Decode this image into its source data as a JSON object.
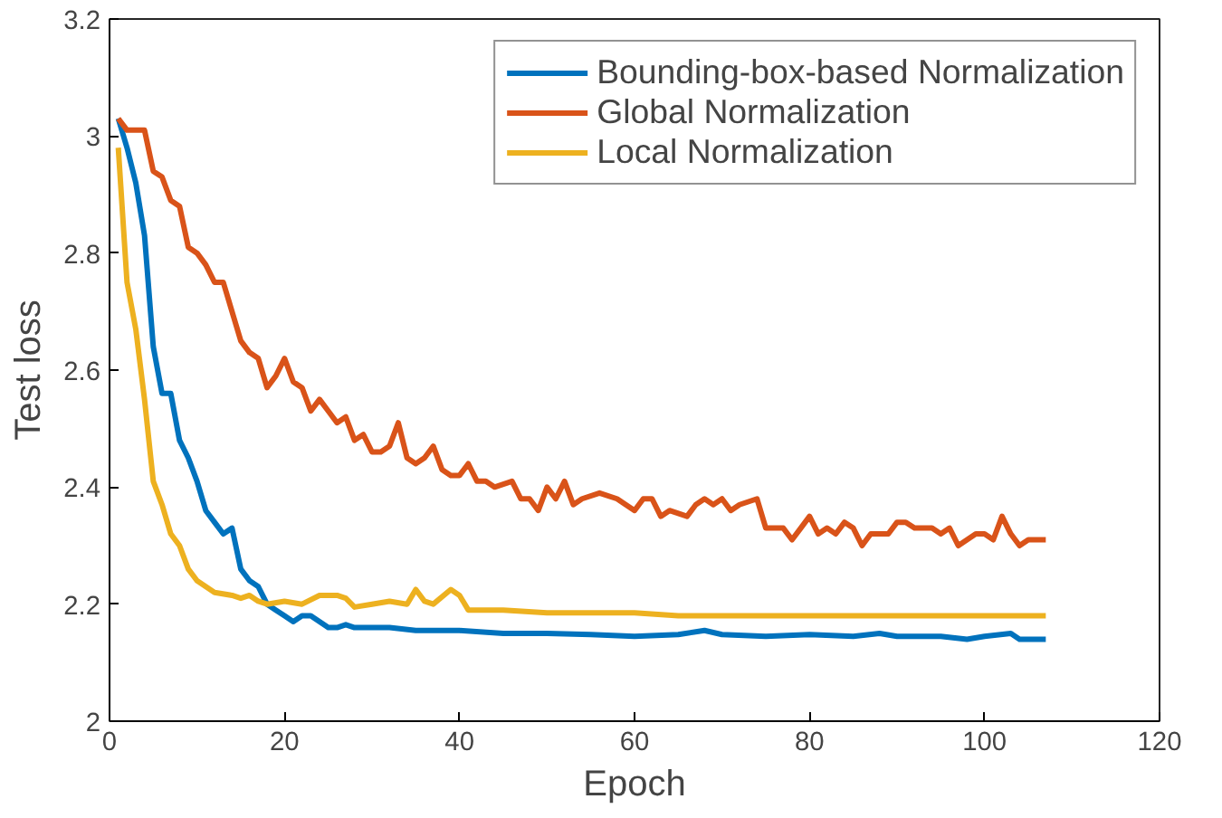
{
  "chart_data": {
    "type": "line",
    "xlabel": "Epoch",
    "ylabel": "Test loss",
    "xlim": [
      0,
      120
    ],
    "ylim": [
      2,
      3.2
    ],
    "xticks": [
      0,
      20,
      40,
      60,
      80,
      100,
      120
    ],
    "yticks": [
      2,
      2.2,
      2.4,
      2.6,
      2.8,
      3,
      3.2
    ],
    "grid": false,
    "legend": "top right",
    "line_style": "solid",
    "marker": "none",
    "series": [
      {
        "name": "Bounding-box-based Normalization",
        "color": "#0072bd",
        "x": [
          1,
          2,
          3,
          4,
          5,
          6,
          7,
          8,
          9,
          10,
          11,
          12,
          13,
          14,
          15,
          16,
          17,
          18,
          19,
          20,
          21,
          22,
          23,
          24,
          25,
          26,
          27,
          28,
          30,
          32,
          35,
          40,
          45,
          50,
          55,
          60,
          65,
          68,
          70,
          75,
          80,
          85,
          88,
          90,
          95,
          98,
          100,
          103,
          104,
          107
        ],
        "values": [
          3.03,
          2.98,
          2.92,
          2.83,
          2.64,
          2.56,
          2.56,
          2.48,
          2.45,
          2.41,
          2.36,
          2.34,
          2.32,
          2.33,
          2.26,
          2.24,
          2.23,
          2.2,
          2.19,
          2.18,
          2.17,
          2.18,
          2.18,
          2.17,
          2.16,
          2.16,
          2.165,
          2.16,
          2.16,
          2.16,
          2.155,
          2.155,
          2.15,
          2.15,
          2.148,
          2.145,
          2.148,
          2.155,
          2.148,
          2.145,
          2.148,
          2.145,
          2.15,
          2.145,
          2.145,
          2.14,
          2.145,
          2.15,
          2.14,
          2.14
        ]
      },
      {
        "name": "Global Normalization",
        "color": "#d95319",
        "x": [
          1,
          2,
          4,
          5,
          6,
          7,
          8,
          9,
          10,
          11,
          12,
          13,
          14,
          15,
          16,
          17,
          18,
          19,
          20,
          21,
          22,
          23,
          24,
          25,
          26,
          27,
          28,
          29,
          30,
          31,
          32,
          33,
          34,
          35,
          36,
          37,
          38,
          39,
          40,
          41,
          42,
          43,
          44,
          46,
          47,
          48,
          49,
          50,
          51,
          52,
          53,
          54,
          56,
          58,
          60,
          61,
          62,
          63,
          64,
          66,
          67,
          68,
          69,
          70,
          71,
          72,
          74,
          75,
          77,
          78,
          79,
          80,
          81,
          82,
          83,
          84,
          85,
          86,
          87,
          88,
          89,
          90,
          91,
          92,
          94,
          95,
          96,
          97,
          98,
          99,
          100,
          101,
          102,
          103,
          104,
          105,
          107
        ],
        "values": [
          3.03,
          3.01,
          3.01,
          2.94,
          2.93,
          2.89,
          2.88,
          2.81,
          2.8,
          2.78,
          2.75,
          2.75,
          2.7,
          2.65,
          2.63,
          2.62,
          2.57,
          2.59,
          2.62,
          2.58,
          2.57,
          2.53,
          2.55,
          2.53,
          2.51,
          2.52,
          2.48,
          2.49,
          2.46,
          2.46,
          2.47,
          2.51,
          2.45,
          2.44,
          2.45,
          2.47,
          2.43,
          2.42,
          2.42,
          2.44,
          2.41,
          2.41,
          2.4,
          2.41,
          2.38,
          2.38,
          2.36,
          2.4,
          2.38,
          2.41,
          2.37,
          2.38,
          2.39,
          2.38,
          2.36,
          2.38,
          2.38,
          2.35,
          2.36,
          2.35,
          2.37,
          2.38,
          2.37,
          2.38,
          2.36,
          2.37,
          2.38,
          2.33,
          2.33,
          2.31,
          2.33,
          2.35,
          2.32,
          2.33,
          2.32,
          2.34,
          2.33,
          2.3,
          2.32,
          2.32,
          2.32,
          2.34,
          2.34,
          2.33,
          2.33,
          2.32,
          2.33,
          2.3,
          2.31,
          2.32,
          2.32,
          2.31,
          2.35,
          2.32,
          2.3,
          2.31,
          2.31
        ]
      },
      {
        "name": "Local Normalization",
        "color": "#edb120",
        "x": [
          1,
          2,
          3,
          4,
          5,
          6,
          7,
          8,
          9,
          10,
          11,
          12,
          14,
          15,
          16,
          17,
          18,
          20,
          22,
          24,
          26,
          27,
          28,
          30,
          32,
          34,
          35,
          36,
          37,
          39,
          40,
          41,
          45,
          50,
          55,
          60,
          65,
          70,
          75,
          107
        ],
        "values": [
          2.98,
          2.75,
          2.67,
          2.55,
          2.41,
          2.37,
          2.32,
          2.3,
          2.26,
          2.24,
          2.23,
          2.22,
          2.215,
          2.21,
          2.215,
          2.205,
          2.2,
          2.205,
          2.2,
          2.215,
          2.215,
          2.21,
          2.195,
          2.2,
          2.205,
          2.2,
          2.225,
          2.205,
          2.2,
          2.225,
          2.215,
          2.19,
          2.19,
          2.185,
          2.185,
          2.185,
          2.18,
          2.18,
          2.18,
          2.18
        ]
      }
    ]
  }
}
